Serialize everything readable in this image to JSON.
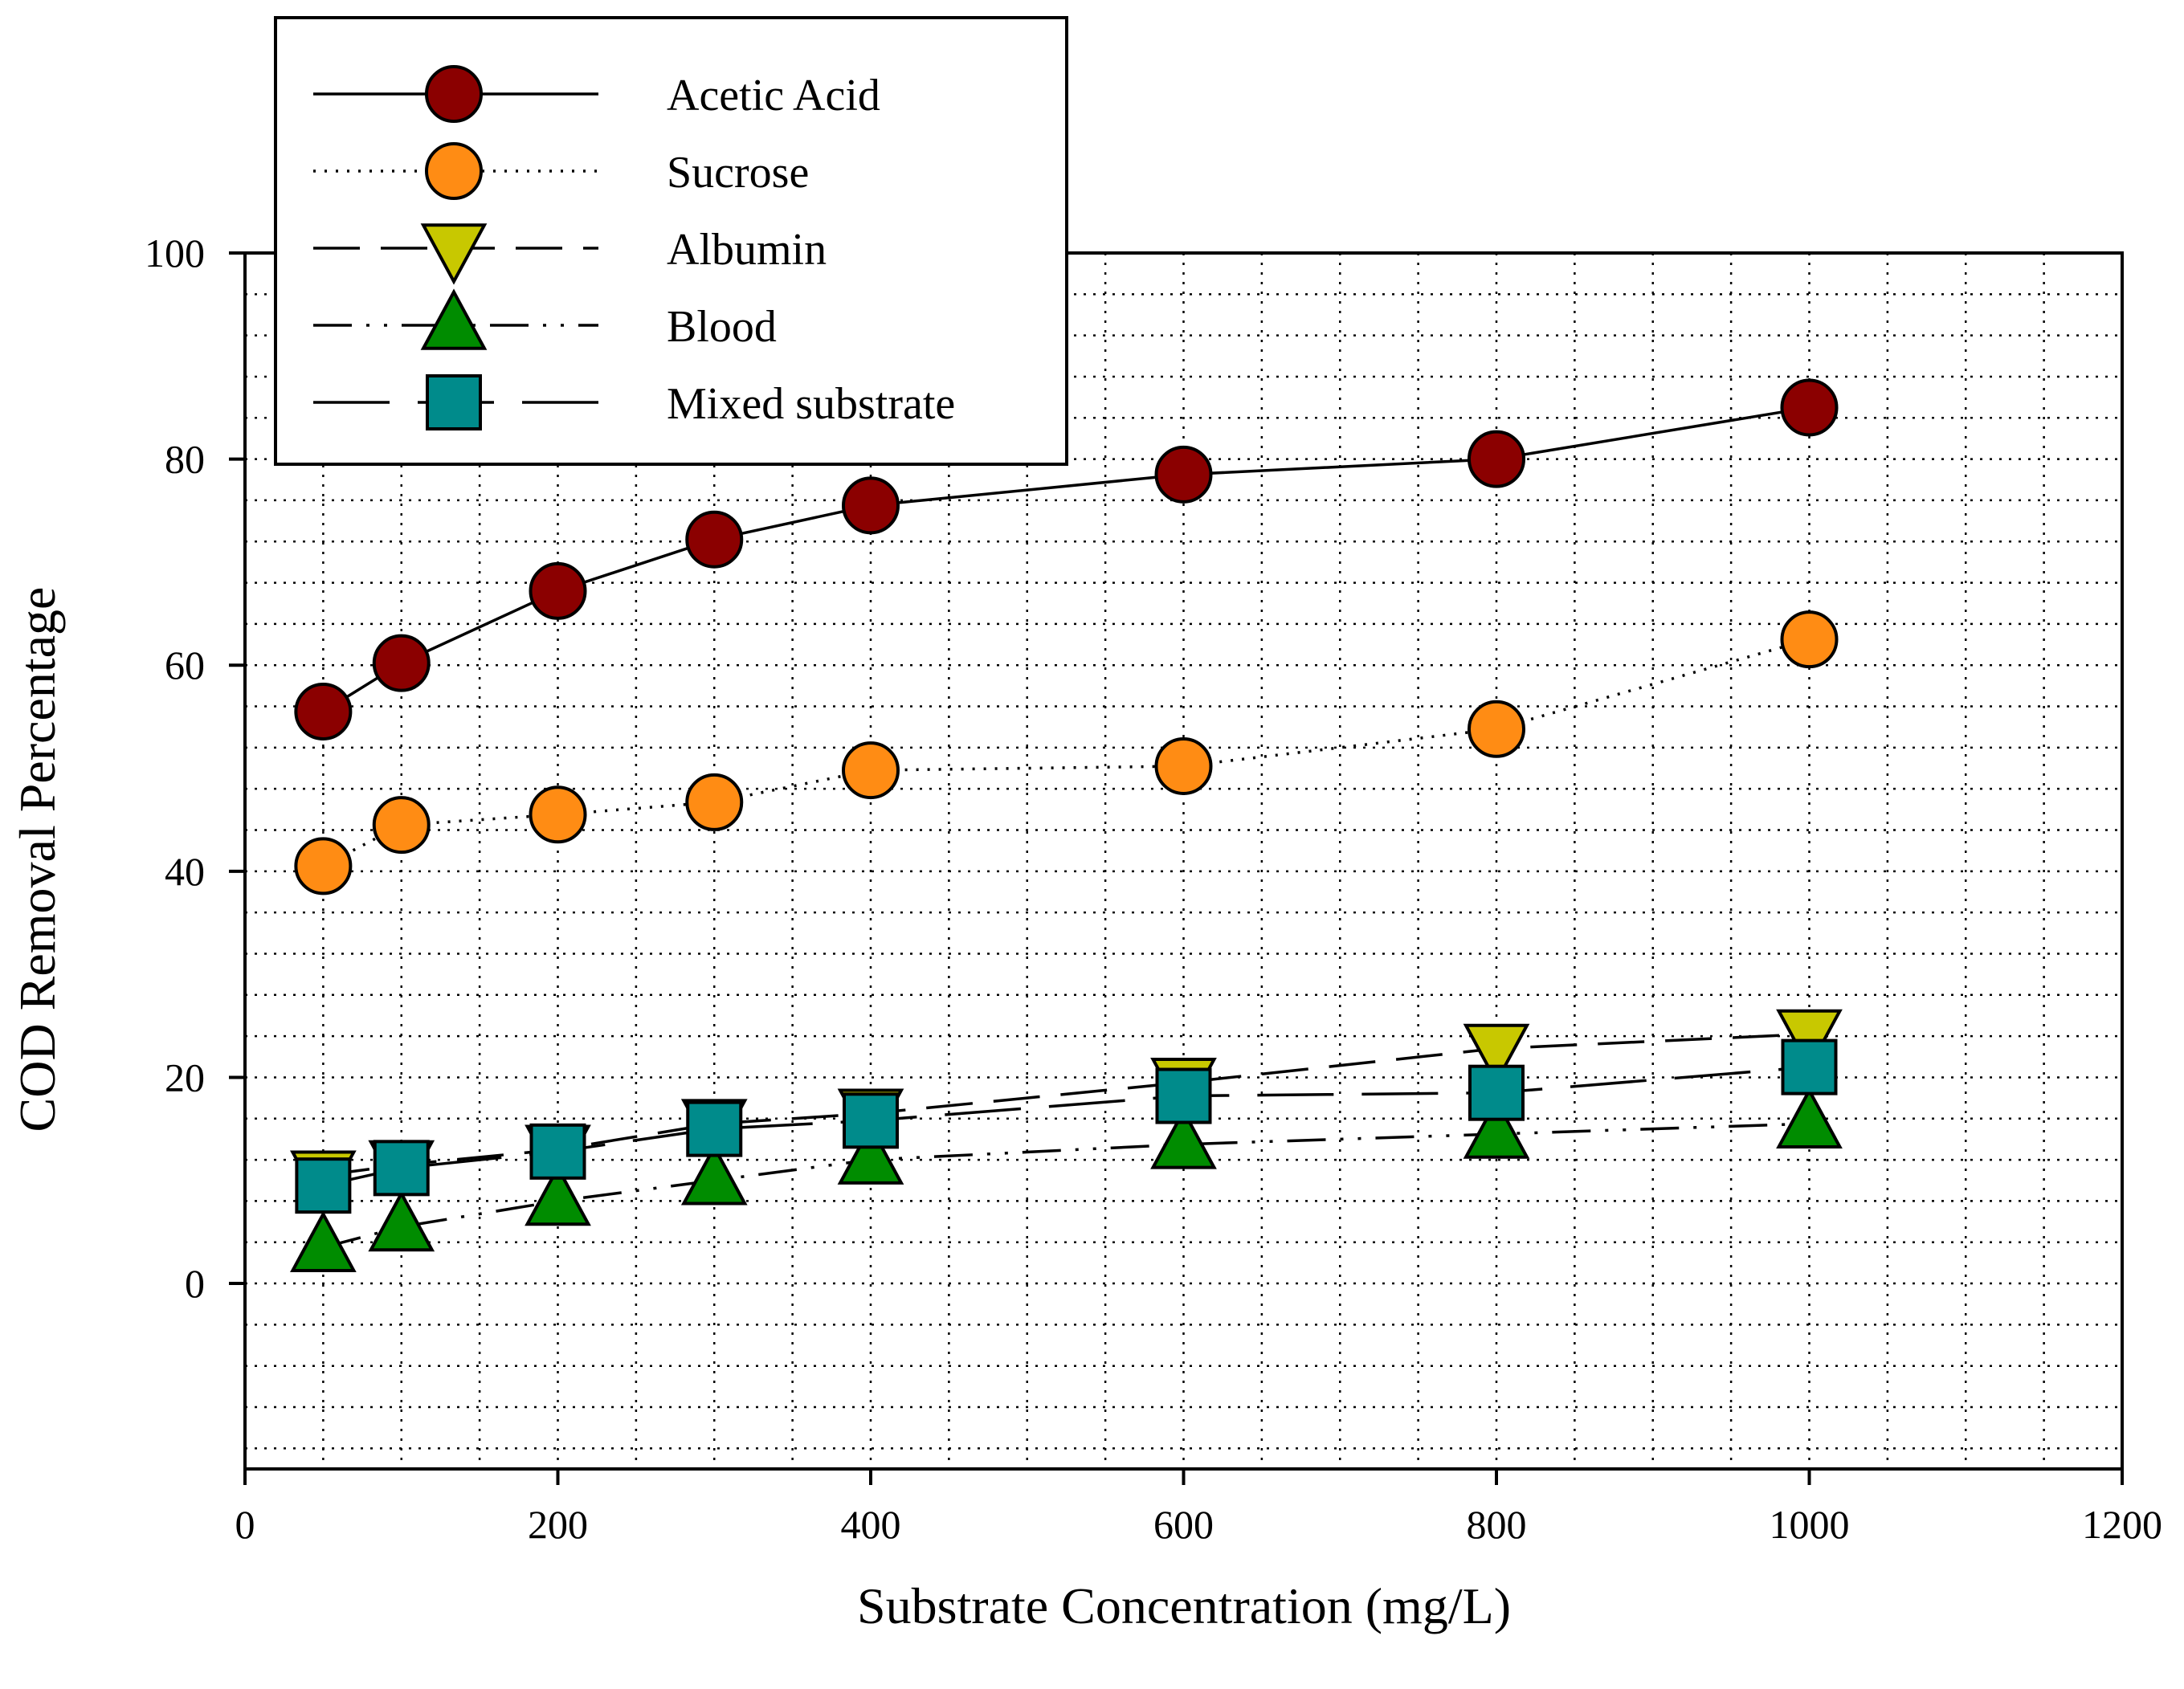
{
  "chart_data": {
    "type": "line",
    "xlabel": "Substrate Concentration (mg/L)",
    "ylabel": "COD Removal Percentage",
    "xlim": [
      0,
      1200
    ],
    "ylim": [
      -18,
      100
    ],
    "xticks": [
      0,
      200,
      400,
      600,
      800,
      1000,
      1200
    ],
    "yticks": [
      0,
      20,
      40,
      60,
      80,
      100
    ],
    "x_tick_labels": [
      "0",
      "200",
      "400",
      "600",
      "800",
      "1000",
      "1200"
    ],
    "y_tick_labels": [
      "0",
      "20",
      "40",
      "60",
      "80",
      "100"
    ],
    "grid": true,
    "legend_position": "top-left",
    "x": [
      50,
      100,
      200,
      300,
      400,
      600,
      800,
      1000
    ],
    "series": [
      {
        "name": "Acetic Acid",
        "values": [
          55.5,
          60.2,
          67.2,
          72.2,
          75.5,
          78.5,
          80.0,
          85.0
        ],
        "marker": "circle",
        "line": "solid",
        "color": "#8b0000"
      },
      {
        "name": "Sucrose",
        "values": [
          40.5,
          44.5,
          45.5,
          46.7,
          49.8,
          50.2,
          53.8,
          62.5
        ],
        "marker": "circle",
        "line": "dotted",
        "color": "#ff8c14"
      },
      {
        "name": "Albumin",
        "values": [
          10.5,
          11.5,
          13.0,
          15.5,
          16.5,
          19.5,
          22.8,
          24.2
        ],
        "marker": "triangle-down",
        "line": "long-dash",
        "color": "#c8c800"
      },
      {
        "name": "Blood",
        "values": [
          3.5,
          5.5,
          8.0,
          10.0,
          12.0,
          13.5,
          14.5,
          15.5
        ],
        "marker": "triangle-up",
        "line": "dash-dot-dot",
        "color": "#008c00"
      },
      {
        "name": "Mixed substrate",
        "values": [
          9.5,
          11.2,
          12.8,
          15.0,
          15.8,
          18.2,
          18.5,
          21.0
        ],
        "marker": "square",
        "line": "long-dash",
        "color": "#008b8b"
      }
    ]
  }
}
